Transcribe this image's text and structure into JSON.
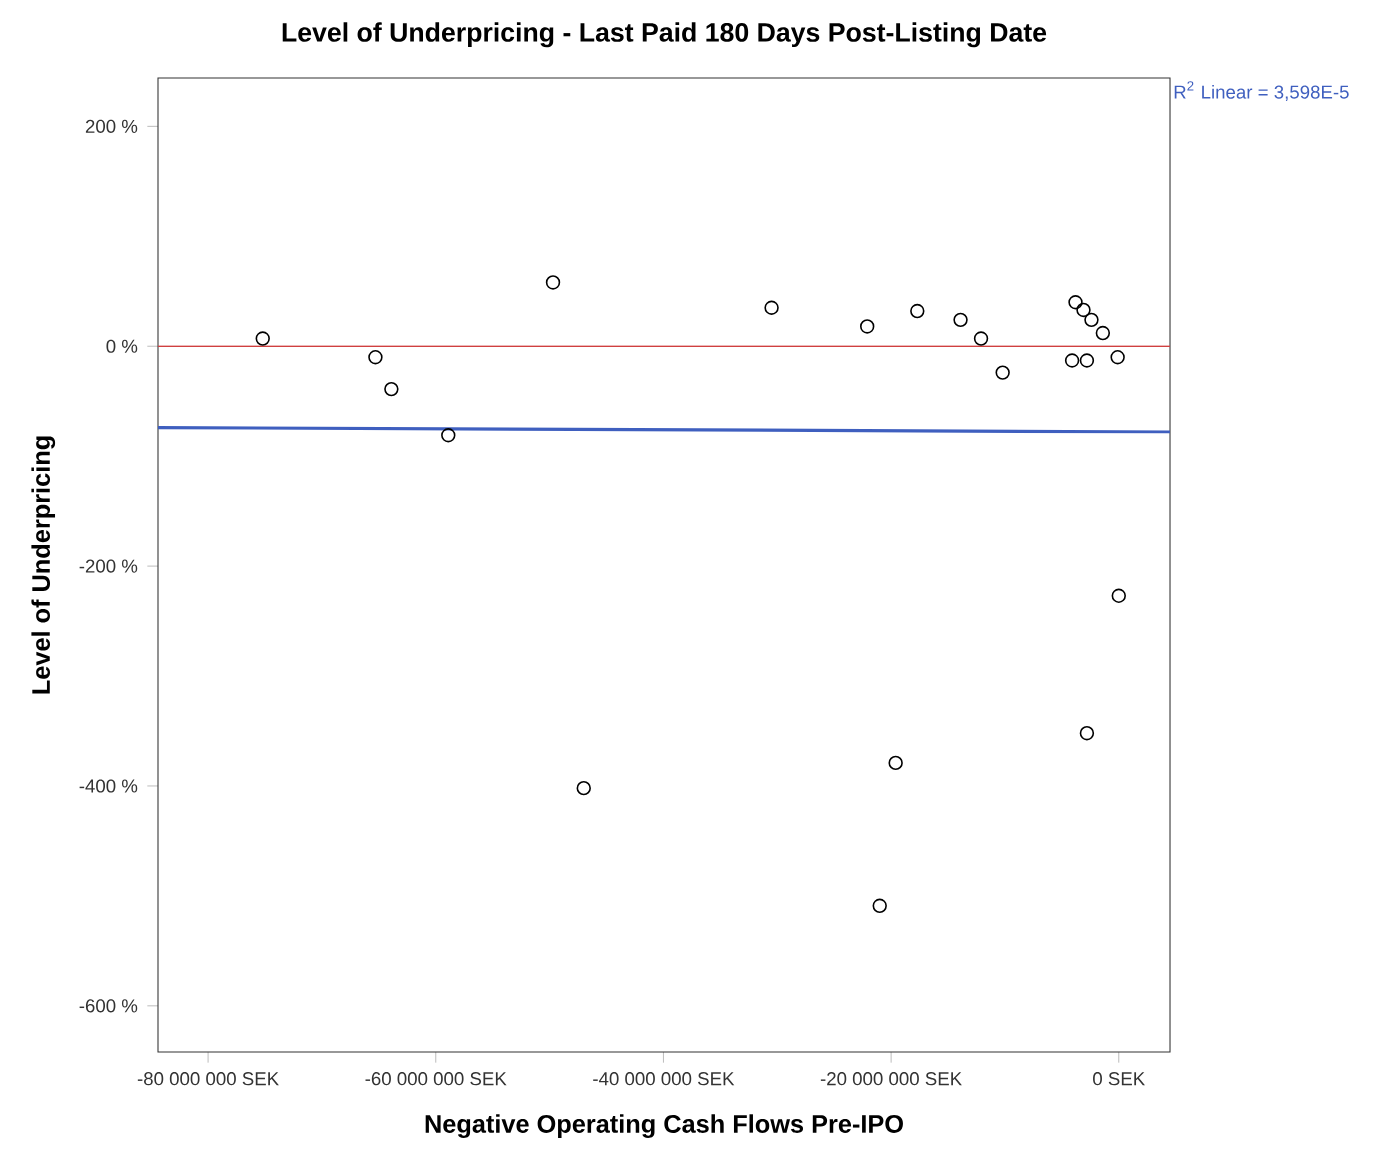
{
  "chart_data": {
    "type": "scatter",
    "title": "Level of Underpricing - Last Paid 180 Days Post-Listing Date",
    "xlabel": "Negative Operating Cash Flows Pre-IPO",
    "ylabel": "Level of Underpricing",
    "xlim": [
      -84400000,
      4500000
    ],
    "ylim": [
      -642,
      244
    ],
    "xticks": [
      {
        "value": -80000000,
        "label": "-80 000 000 SEK"
      },
      {
        "value": -60000000,
        "label": "-60 000 000 SEK"
      },
      {
        "value": -40000000,
        "label": "-40 000 000 SEK"
      },
      {
        "value": -20000000,
        "label": "-20 000 000 SEK"
      },
      {
        "value": 0,
        "label": "0 SEK"
      }
    ],
    "yticks": [
      {
        "value": 200,
        "label": "200 %"
      },
      {
        "value": 0,
        "label": "0 %"
      },
      {
        "value": -200,
        "label": "-200 %"
      },
      {
        "value": -400,
        "label": "-400 %"
      },
      {
        "value": -600,
        "label": "-600 %"
      }
    ],
    "series": [
      {
        "color": "#000000",
        "marker": "circle",
        "x": [
          -75200000,
          -65300000,
          -63900000,
          -58900000,
          -49700000,
          -47000000,
          -30500000,
          -22100000,
          -21000000,
          -19600000,
          -17700000,
          -13900000,
          -12100000,
          -10200000,
          -4100000,
          -3800000,
          -3100000,
          -2800000,
          -2800000,
          -2400000,
          -1400000,
          -100000,
          0
        ],
        "values": [
          7,
          -10,
          -39,
          -81,
          58,
          -402,
          35,
          18,
          -509,
          -379,
          32,
          24,
          7,
          -24,
          -13,
          40,
          33,
          -13,
          -352,
          24,
          12,
          -10,
          -227
        ]
      },
      {
        "type": "line",
        "color": "#3f5fbf",
        "marker": "none",
        "x": [
          -84400000,
          4500000
        ],
        "values": [
          -74,
          -78
        ]
      }
    ],
    "ref_lines": [
      {
        "axis": "y",
        "value": 0,
        "color": "#d04040"
      }
    ],
    "annotations": [
      "R$^{2}$ Linear = 3,598E-5"
    ],
    "grid": false
  }
}
